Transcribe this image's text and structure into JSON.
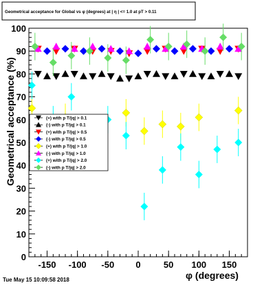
{
  "chart_data": {
    "type": "scatter",
    "title": "Geometrical acceptance for Global vs φ (degrees) at | η | <= 1.0 at pT > 0.11",
    "xlabel": "φ (degrees)",
    "ylabel": "Geometrical acceptance (%)",
    "xlim": [
      -180,
      180
    ],
    "ylim": [
      0,
      100
    ],
    "x_ticks": [
      "-150",
      "-100",
      "-50",
      "0",
      "50",
      "100",
      "150"
    ],
    "y_ticks": [
      "0",
      "10",
      "20",
      "30",
      "40",
      "50",
      "60",
      "70",
      "80",
      "90",
      "100"
    ],
    "grid": false,
    "legend_position": "middle-left",
    "series": [
      {
        "name": "(+) with p T/|q| > 0.1",
        "color": "#000000",
        "marker": "triangle-down",
        "x": [
          -165,
          -135,
          -105,
          -75,
          -45,
          -15,
          15,
          45,
          75,
          105,
          135,
          165
        ],
        "y": [
          80,
          79,
          80,
          79,
          79,
          78,
          80,
          79,
          80,
          79,
          80,
          79
        ]
      },
      {
        "name": "(-) with p T/|q| > 0.1",
        "color": "#000000",
        "marker": "triangle-up",
        "x": [
          -150,
          -120,
          -90,
          -60,
          -30,
          0,
          30,
          60,
          90,
          120,
          150
        ],
        "y": [
          79,
          80,
          79,
          80,
          78,
          79,
          80,
          79,
          80,
          79,
          80
        ]
      },
      {
        "name": "(+) with p T/|q| > 0.5",
        "color": "#ff0000",
        "marker": "triangle-down",
        "x": [
          -165,
          -135,
          -105,
          -75,
          -45,
          -15,
          15,
          45,
          75,
          105,
          135,
          165
        ],
        "y": [
          91,
          90,
          91,
          90,
          90,
          89,
          90,
          91,
          90,
          91,
          90,
          91
        ]
      },
      {
        "name": "(-) with p T/|q| > 0.5",
        "color": "#0000ff",
        "marker": "diamond",
        "x": [
          -150,
          -120,
          -90,
          -60,
          -30,
          0,
          30,
          60,
          90,
          120,
          150
        ],
        "y": [
          90,
          91,
          90,
          91,
          90,
          89,
          91,
          90,
          91,
          90,
          91
        ]
      },
      {
        "name": "(+) with p T/|q| > 1.0",
        "color": "#ffff00",
        "marker": "diamond",
        "x": [
          -175,
          -120,
          -20,
          10,
          40,
          70,
          100,
          165
        ],
        "y": [
          65,
          61,
          63,
          55,
          58,
          57,
          61,
          64
        ]
      },
      {
        "name": "(-) with p T/|q| > 1.0",
        "color": "#ff00ff",
        "marker": "triangle-up",
        "x": [
          -165,
          -135,
          -105,
          -75,
          -45,
          -15,
          15,
          45,
          75,
          105,
          135,
          165
        ],
        "y": [
          91,
          92,
          91,
          92,
          91,
          90,
          92,
          91,
          92,
          91,
          92,
          91
        ]
      },
      {
        "name": "(+) with p T/|q| > 2.0",
        "color": "#00ffff",
        "marker": "diamond",
        "x": [
          -175,
          -140,
          -110,
          -80,
          -50,
          -20,
          10,
          40,
          70,
          100,
          130,
          165
        ],
        "y": [
          75,
          60,
          70,
          55,
          60,
          53,
          22,
          38,
          48,
          36,
          47,
          50
        ]
      },
      {
        "name": "(-) with p T/|q| > 2.0",
        "color": "#66dd66",
        "marker": "diamond",
        "x": [
          -170,
          -140,
          -110,
          -80,
          -50,
          -20,
          20,
          50,
          80,
          110,
          140,
          170
        ],
        "y": [
          92,
          85,
          88,
          90,
          87,
          86,
          95,
          92,
          93,
          90,
          96,
          92
        ]
      }
    ]
  },
  "footer": {
    "timestamp": "Tue May 15 10:09:58 2018"
  }
}
